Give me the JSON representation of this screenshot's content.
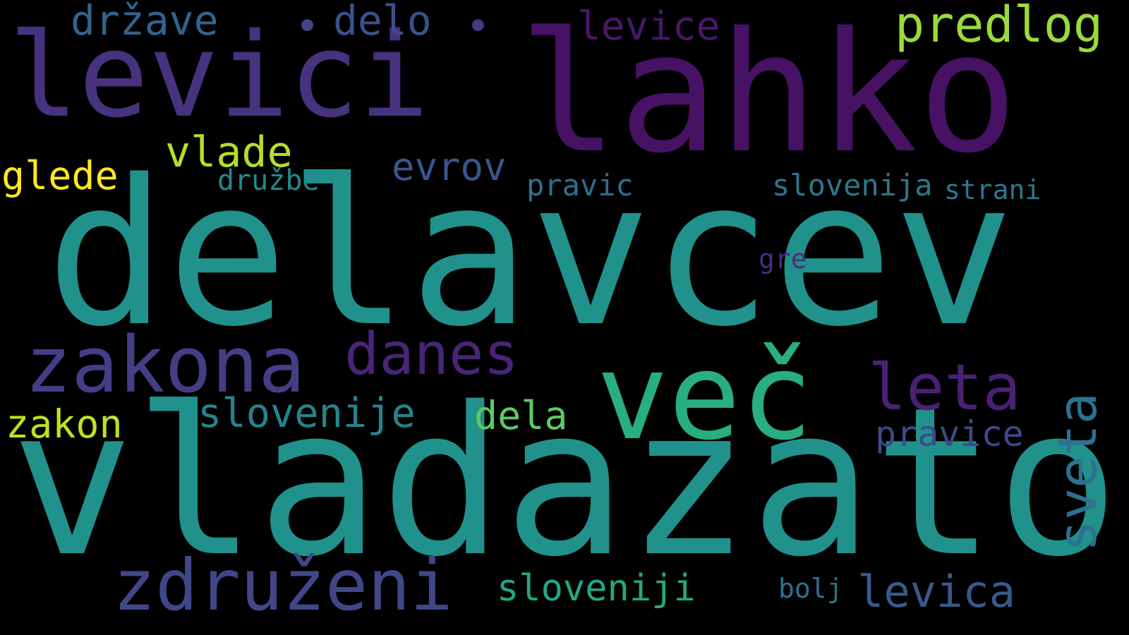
{
  "wordcloud": {
    "background": "#000000",
    "words": {
      "lahko": {
        "text": "lahko",
        "color": "#471164"
      },
      "levici": {
        "text": "levici",
        "color": "#46327e"
      },
      "delavcev": {
        "text": "delavcev",
        "color": "#21918c"
      },
      "vladazato": {
        "text": "vladazato",
        "color": "#21918c"
      },
      "vec": {
        "text": "več",
        "color": "#28ae80"
      },
      "zakona": {
        "text": "zakona",
        "color": "#433e85"
      },
      "zdruzeni": {
        "text": "združeni",
        "color": "#3f4788"
      },
      "danes": {
        "text": "danes",
        "color": "#482576"
      },
      "leta": {
        "text": "leta",
        "color": "#482173"
      },
      "sveta": {
        "text": "sveta",
        "color": "#2c728e"
      },
      "predlog": {
        "text": "predlog",
        "color": "#9bd93c"
      },
      "drzave": {
        "text": "države",
        "color": "#33638d"
      },
      "delo": {
        "text": "delo",
        "color": "#3b518b"
      },
      "levice": {
        "text": "levice",
        "color": "#481769"
      },
      "dot1": {
        "text": "•",
        "color": "#414487"
      },
      "dot2": {
        "text": "•",
        "color": "#443983"
      },
      "vlade": {
        "text": "vlade",
        "color": "#b5de2b"
      },
      "glede": {
        "text": "glede",
        "color": "#fde725"
      },
      "evrov": {
        "text": "evrov",
        "color": "#39568c"
      },
      "druzbe": {
        "text": "družbe",
        "color": "#238a8d"
      },
      "pravic": {
        "text": "pravic",
        "color": "#2d708e"
      },
      "slovenija": {
        "text": "slovenija",
        "color": "#2a788e"
      },
      "strani": {
        "text": "strani",
        "color": "#2a788e"
      },
      "gre": {
        "text": "gre",
        "color": "#472d7b"
      },
      "slovenije": {
        "text": "slovenije",
        "color": "#25848e"
      },
      "dela": {
        "text": "dela",
        "color": "#5ec962"
      },
      "zakon": {
        "text": "zakon",
        "color": "#c2df23"
      },
      "pravice": {
        "text": "pravice",
        "color": "#3e4989"
      },
      "sloveniji": {
        "text": "sloveniji",
        "color": "#22a884"
      },
      "bolj": {
        "text": "bolj",
        "color": "#2d718e"
      },
      "levica": {
        "text": "levica",
        "color": "#38598c"
      }
    }
  }
}
